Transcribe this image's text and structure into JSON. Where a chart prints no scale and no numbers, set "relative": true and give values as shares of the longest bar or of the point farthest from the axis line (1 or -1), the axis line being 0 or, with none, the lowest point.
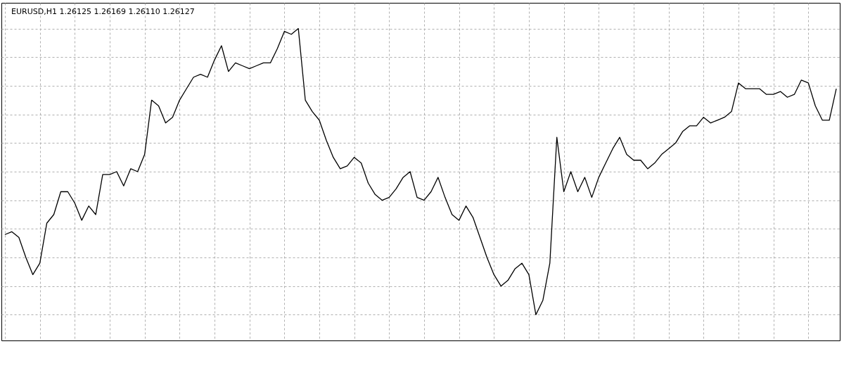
{
  "chart_data": {
    "type": "line",
    "title": "EURUSD,H1  1.26125 1.26169 1.26110 1.26127",
    "relative": true,
    "grid": true,
    "legend": false,
    "marker": "none",
    "line_style": "solid",
    "categories": [
      null,
      null,
      null,
      null,
      null,
      null,
      null,
      null,
      null,
      null,
      null,
      null,
      null,
      null,
      null,
      null,
      null,
      null,
      null,
      null,
      null,
      null,
      null,
      null,
      null,
      null,
      null,
      null,
      null,
      null,
      null,
      null,
      null,
      null,
      null,
      null,
      null,
      null,
      null,
      null,
      null,
      null,
      null,
      null,
      null,
      null,
      null,
      null,
      null,
      null,
      null,
      null,
      null,
      null,
      null,
      null,
      null,
      null,
      null,
      null,
      null,
      null,
      null,
      null,
      null,
      null,
      null,
      null,
      null,
      null,
      null,
      null,
      null,
      null,
      null,
      null,
      null,
      null,
      null,
      null,
      null,
      null,
      null,
      null,
      null,
      null,
      null,
      null,
      null,
      null,
      null,
      null,
      null,
      null,
      null,
      null,
      null,
      null,
      null,
      null,
      null,
      null,
      null,
      null,
      null,
      null,
      null,
      null,
      null,
      null,
      null,
      null,
      null,
      null,
      null,
      null,
      null,
      null,
      null,
      null
    ],
    "series": [
      {
        "color": "#000000",
        "values": [
          0.28,
          0.29,
          0.27,
          0.2,
          0.14,
          0.18,
          0.32,
          0.35,
          0.43,
          0.43,
          0.39,
          0.33,
          0.38,
          0.35,
          0.49,
          0.49,
          0.5,
          0.45,
          0.51,
          0.5,
          0.56,
          0.75,
          0.73,
          0.67,
          0.69,
          0.75,
          0.79,
          0.83,
          0.84,
          0.83,
          0.89,
          0.94,
          0.85,
          0.88,
          0.87,
          0.86,
          0.87,
          0.88,
          0.88,
          0.93,
          0.99,
          0.98,
          1,
          0.75,
          0.71,
          0.68,
          0.61,
          0.55,
          0.51,
          0.52,
          0.55,
          0.53,
          0.46,
          0.42,
          0.4,
          0.41,
          0.44,
          0.48,
          0.5,
          0.41,
          0.4,
          0.43,
          0.48,
          0.41,
          0.35,
          0.33,
          0.38,
          0.34,
          0.27,
          0.2,
          0.14,
          0.1,
          0.12,
          0.16,
          0.18,
          0.14,
          0,
          0.05,
          0.18,
          0.62,
          0.43,
          0.5,
          0.43,
          0.48,
          0.41,
          0.48,
          0.53,
          0.58,
          0.62,
          0.56,
          0.54,
          0.54,
          0.51,
          0.53,
          0.56,
          0.58,
          0.6,
          0.64,
          0.66,
          0.66,
          0.69,
          0.67,
          0.68,
          0.69,
          0.71,
          0.81,
          0.79,
          0.79,
          0.79,
          0.77,
          0.77,
          0.78,
          0.76,
          0.77,
          0.82,
          0.81,
          0.73,
          0.68,
          0.68,
          0.79
        ]
      }
    ]
  }
}
